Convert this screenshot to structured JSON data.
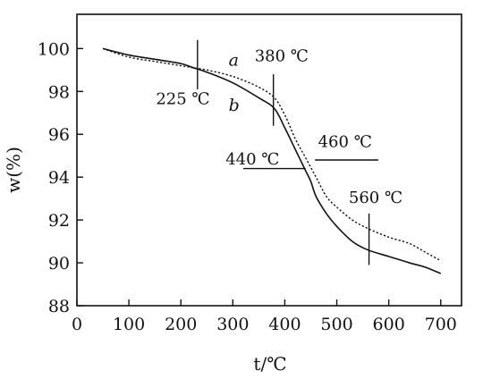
{
  "chart_data": {
    "type": "line",
    "title": "",
    "xlabel": "t/℃",
    "ylabel": "w(%)",
    "xlim": [
      0,
      740
    ],
    "ylim": [
      88,
      101.6
    ],
    "xticks": [
      0,
      100,
      200,
      300,
      400,
      500,
      600,
      700
    ],
    "yticks": [
      88,
      90,
      92,
      94,
      96,
      98,
      100
    ],
    "grid": false,
    "legend": "none",
    "series": [
      {
        "name": "a",
        "style": "dotted",
        "x": [
          50,
          100,
          150,
          200,
          225,
          250,
          300,
          350,
          380,
          400,
          420,
          440,
          460,
          480,
          500,
          530,
          560,
          600,
          640,
          670,
          700
        ],
        "y": [
          100.0,
          99.6,
          99.4,
          99.2,
          99.1,
          99.0,
          98.7,
          98.2,
          97.7,
          96.9,
          95.8,
          94.9,
          94.0,
          93.1,
          92.6,
          92.0,
          91.6,
          91.2,
          90.9,
          90.5,
          90.1
        ]
      },
      {
        "name": "b",
        "style": "solid",
        "x": [
          50,
          100,
          150,
          200,
          225,
          250,
          300,
          350,
          380,
          400,
          420,
          440,
          450,
          460,
          480,
          500,
          530,
          560,
          600,
          640,
          670,
          700
        ],
        "y": [
          100.0,
          99.7,
          99.5,
          99.3,
          99.1,
          98.9,
          98.4,
          97.7,
          97.2,
          96.3,
          95.3,
          94.3,
          93.8,
          93.1,
          92.3,
          91.7,
          91.0,
          90.6,
          90.3,
          90.0,
          89.8,
          89.5
        ]
      }
    ],
    "markers": [
      {
        "type": "vline",
        "x": 232,
        "y": [
          98.1,
          100.4
        ]
      },
      {
        "type": "vline",
        "x": 378,
        "y": [
          96.4,
          98.8
        ]
      },
      {
        "type": "hline",
        "y": 94.4,
        "x": [
          320,
          440
        ]
      },
      {
        "type": "hline",
        "y": 94.8,
        "x": [
          458,
          580
        ]
      },
      {
        "type": "vline",
        "x": 562,
        "y": [
          89.9,
          92.3
        ]
      }
    ],
    "annotations": [
      {
        "text": "225 ℃",
        "x": 152,
        "y": 97.4
      },
      {
        "text": "380 ℃",
        "x": 342,
        "y": 99.4
      },
      {
        "text": "440 ℃",
        "x": 286,
        "y": 94.6
      },
      {
        "text": "460 ℃",
        "x": 464,
        "y": 95.4
      },
      {
        "text": "560 ℃",
        "x": 523,
        "y": 92.8
      }
    ],
    "curve_labels": [
      {
        "text": "a",
        "x": 292,
        "y": 99.2
      },
      {
        "text": "b",
        "x": 292,
        "y": 97.1
      }
    ]
  }
}
